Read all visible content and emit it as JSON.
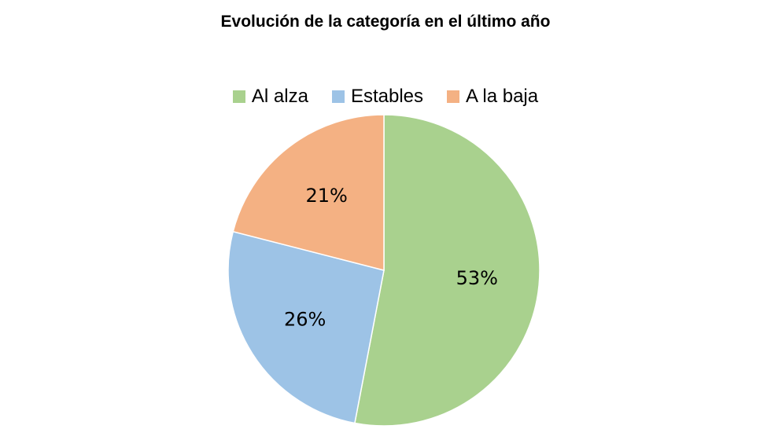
{
  "chart_data": {
    "type": "pie",
    "title": "Evolución de la categoría en el último año",
    "categories": [
      "Al alza",
      "Estables",
      "A la baja"
    ],
    "values": [
      53,
      26,
      21
    ],
    "data_labels": [
      "53%",
      "26%",
      "21%"
    ],
    "colors": [
      "#a9d18e",
      "#9dc3e6",
      "#f4b183"
    ],
    "legend_position": "top"
  }
}
